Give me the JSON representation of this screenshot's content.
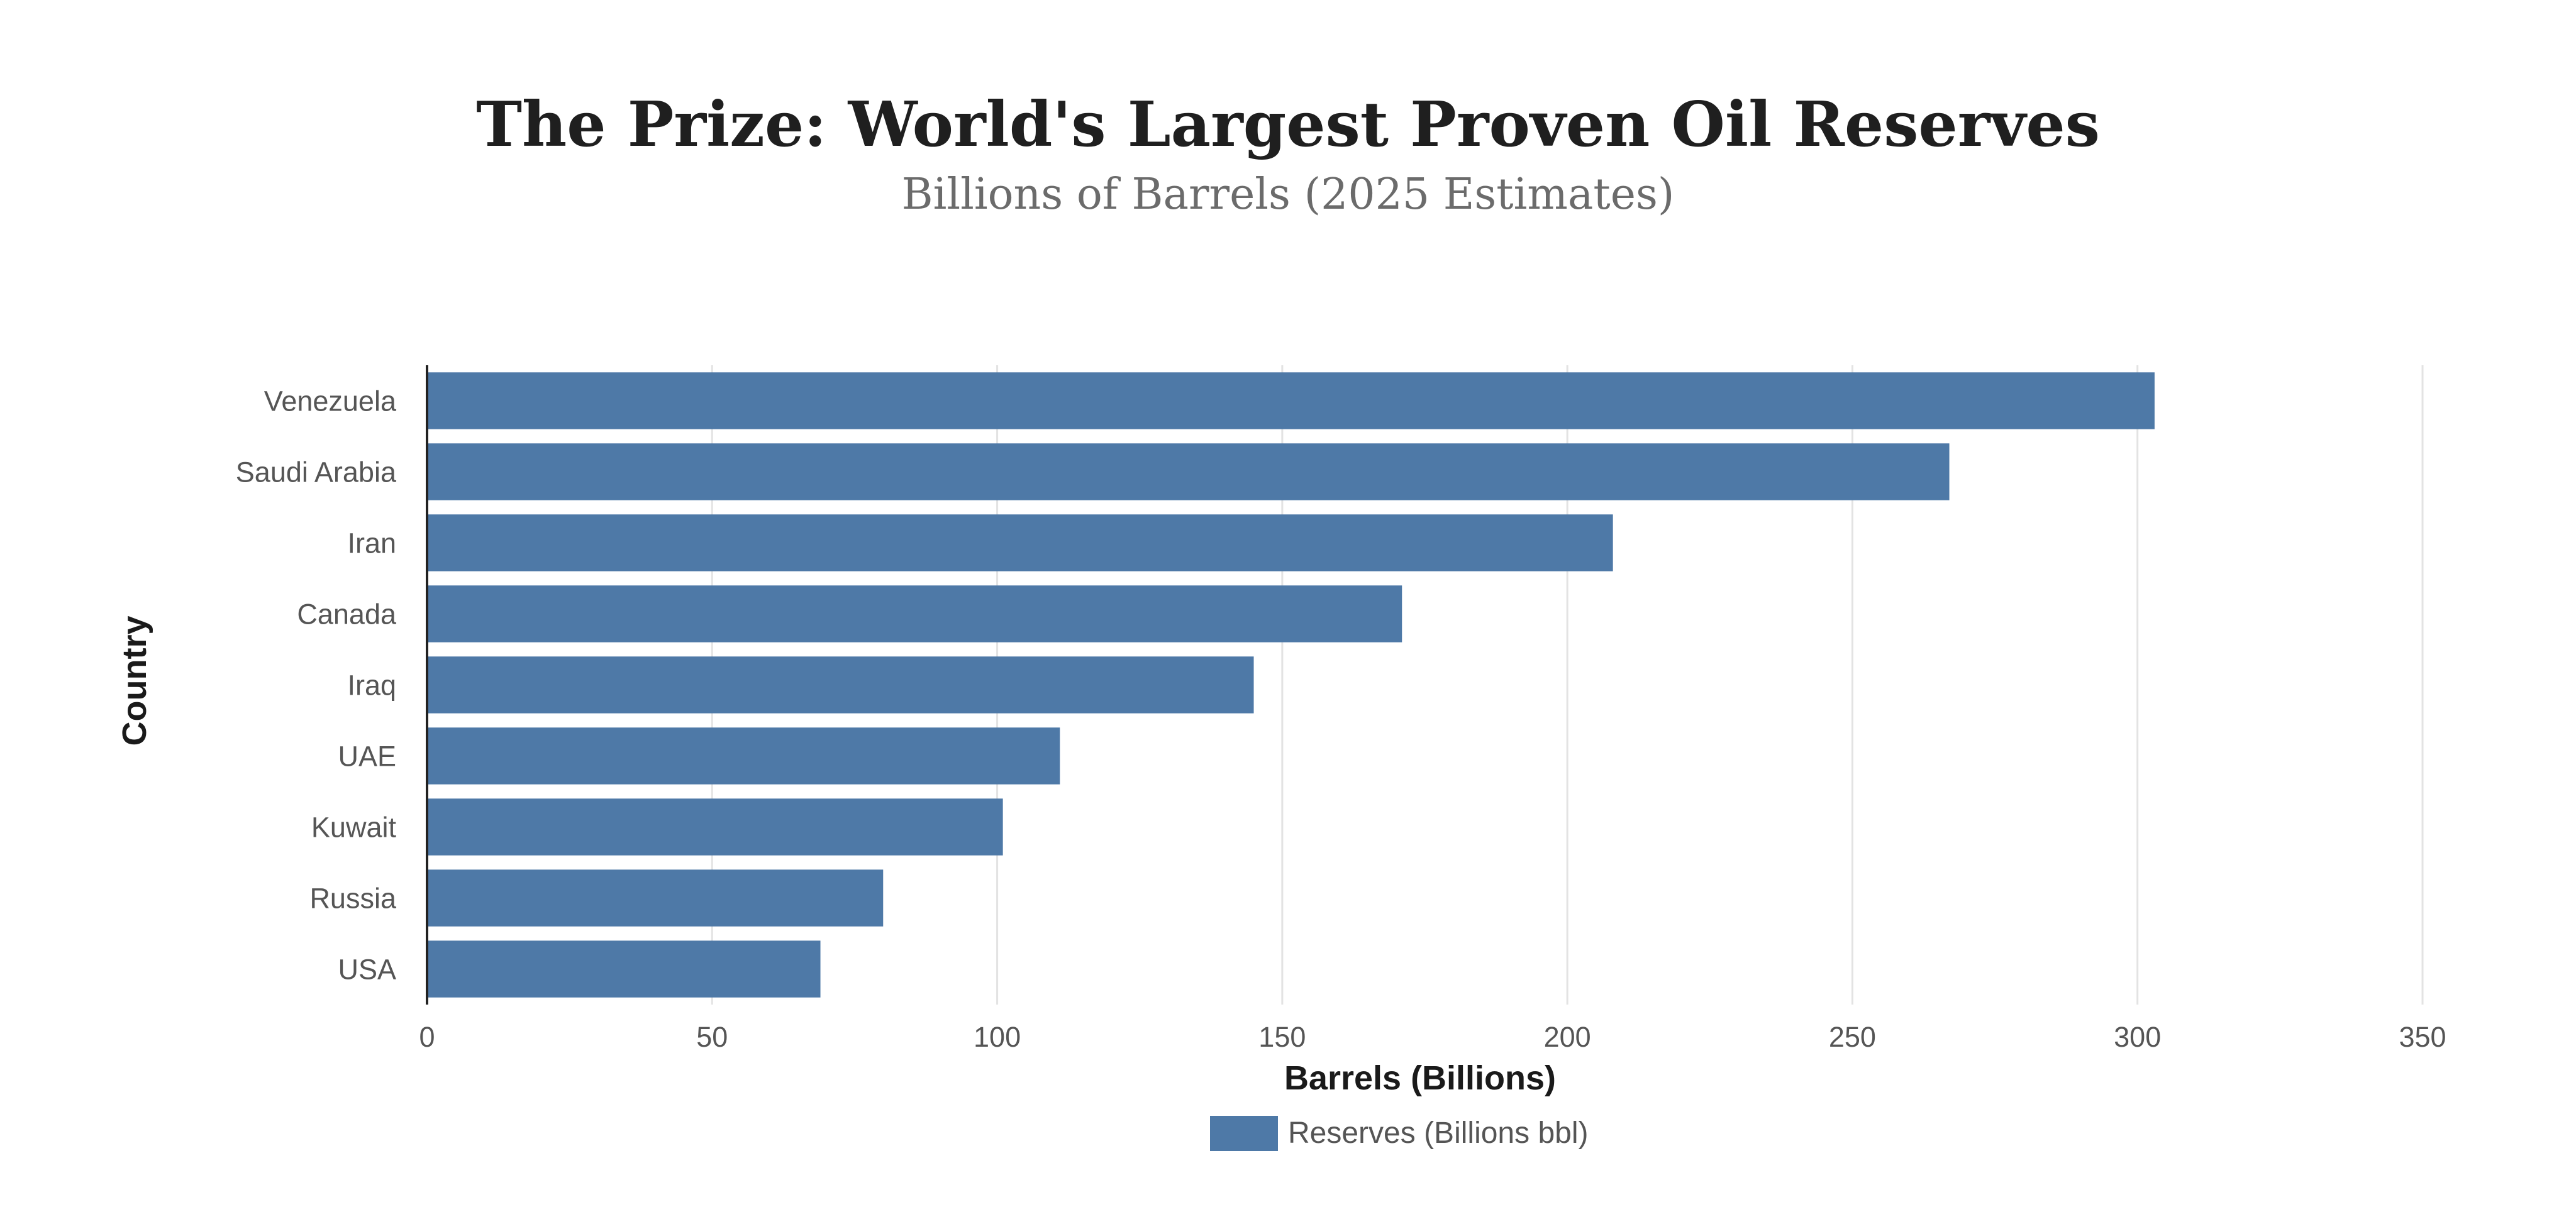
{
  "chart_data": {
    "type": "bar",
    "orientation": "horizontal",
    "title": "The Prize: World's Largest Proven Oil Reserves",
    "subtitle": "Billions of Barrels (2025 Estimates)",
    "categories": [
      "Venezuela",
      "Saudi Arabia",
      "Iran",
      "Canada",
      "Iraq",
      "UAE",
      "Kuwait",
      "Russia",
      "USA"
    ],
    "series": [
      {
        "name": "Reserves (Billions bbl)",
        "values": [
          303,
          267,
          208,
          171,
          145,
          111,
          101,
          80,
          69
        ],
        "color": "#4e79a7"
      }
    ],
    "xlabel": "Barrels (Billions)",
    "ylabel": "Country",
    "xlim": [
      0,
      350
    ],
    "xticks": [
      0,
      50,
      100,
      150,
      200,
      250,
      300,
      350
    ],
    "grid": true,
    "legend_position": "bottom-center"
  },
  "colors": {
    "bar": "#4e79a7",
    "grid": "#e3e3e3",
    "axis": "#222222"
  }
}
